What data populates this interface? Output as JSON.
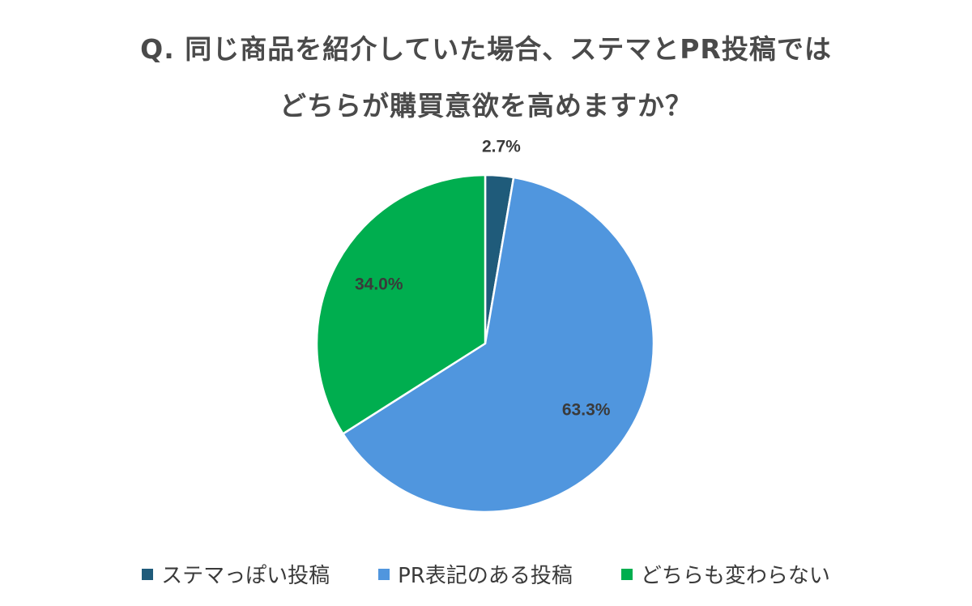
{
  "chart_data": {
    "type": "pie",
    "title_lines": [
      "Q. 同じ商品を紹介していた場合、ステマとPR投稿では",
      "どちらが購買意欲を高めますか？"
    ],
    "slices": [
      {
        "label": "ステマっぽい投稿",
        "value": 2.7,
        "display": "2.7%",
        "color": "#1f5b7a"
      },
      {
        "label": "PR表記のある投稿",
        "value": 63.3,
        "display": "63.3%",
        "color": "#5096de"
      },
      {
        "label": "どちらも変わらない",
        "value": 34.0,
        "display": "34.0%",
        "color": "#00ae4f"
      }
    ],
    "start_angle_deg": 0,
    "direction": "clockwise",
    "legend_position": "bottom"
  }
}
